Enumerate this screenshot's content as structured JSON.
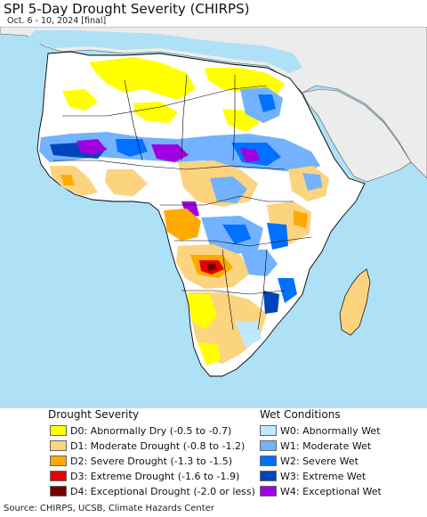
{
  "header": {
    "title": "SPI 5-Day Drought Severity (CHIRPS)",
    "subtitle": "Oct. 6 - 10, 2024 [final]"
  },
  "legend": {
    "drought_title": "Drought Severity",
    "drought_items": [
      {
        "label": "D0: Abnormally Dry (-0.5 to -0.7)",
        "color": "#ffff00"
      },
      {
        "label": "D1: Moderate Drought (-0.8 to -1.2)",
        "color": "#fcd37f"
      },
      {
        "label": "D2: Severe Drought (-1.3 to -1.5)",
        "color": "#ffaa00"
      },
      {
        "label": "D3: Extreme Drought (-1.6 to -1.9)",
        "color": "#e60000"
      },
      {
        "label": "D4: Exceptional Drought (-2.0 or less)",
        "color": "#730000"
      }
    ],
    "wet_title": "Wet Conditions",
    "wet_items": [
      {
        "label": "W0: Abnormally Wet",
        "color": "#bee8ff"
      },
      {
        "label": "W1: Moderate Wet",
        "color": "#73b2ff"
      },
      {
        "label": "W2: Severe Wet",
        "color": "#0070ff"
      },
      {
        "label": "W3: Extreme Wet",
        "color": "#0044bb"
      },
      {
        "label": "W4: Exceptional Wet",
        "color": "#a000e0"
      }
    ]
  },
  "colors": {
    "ocean": "#aee0f6",
    "land_neutral": "#ffffff",
    "outside_region": "#ececec",
    "border": "#000000"
  },
  "footer": {
    "source": "Source: CHIRPS, UCSB, Climate Hazards Center"
  }
}
